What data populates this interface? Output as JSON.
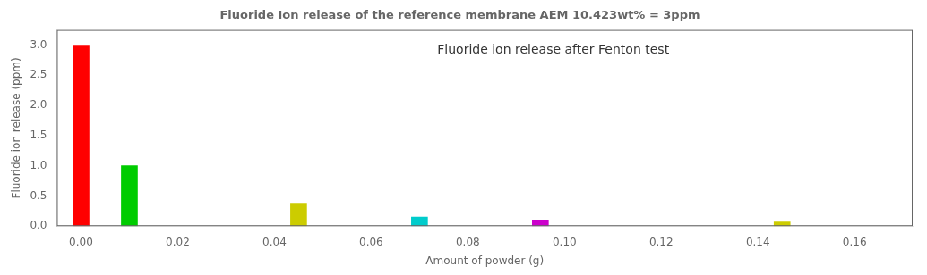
{
  "chart_data": {
    "type": "bar",
    "title": "Fluoride Ion release of the reference membrane AEM 10.423wt% = 3ppm",
    "annotation": "Fluoride ion release after Fenton test",
    "xlabel": "Amount of powder (g)",
    "ylabel": "Fluoride ion release (ppm)",
    "x": [
      0.0,
      0.01,
      0.045,
      0.07,
      0.095,
      0.145
    ],
    "values": [
      3.0,
      1.0,
      0.38,
      0.15,
      0.1,
      0.07
    ],
    "colors": [
      "#FF0000",
      "#00CC00",
      "#CCCC00",
      "#00CCCC",
      "#CC00CC",
      "#CCCC00"
    ],
    "xlim": [
      -0.005,
      0.172
    ],
    "ylim": [
      0,
      3.25
    ],
    "xticks": [
      {
        "value": 0.0,
        "label": "0.00"
      },
      0.02,
      0.04,
      0.06,
      0.08,
      {
        "value": 0.1,
        "label": "0.10"
      },
      0.12,
      0.14,
      0.16
    ],
    "yticks": [
      {
        "value": 0.0,
        "label": "0.0"
      },
      0.5,
      {
        "value": 1.0,
        "label": "1.0"
      },
      1.5,
      {
        "value": 2.0,
        "label": "2.0"
      },
      2.5,
      {
        "value": 3.0,
        "label": "3.0"
      }
    ],
    "grid": false
  }
}
